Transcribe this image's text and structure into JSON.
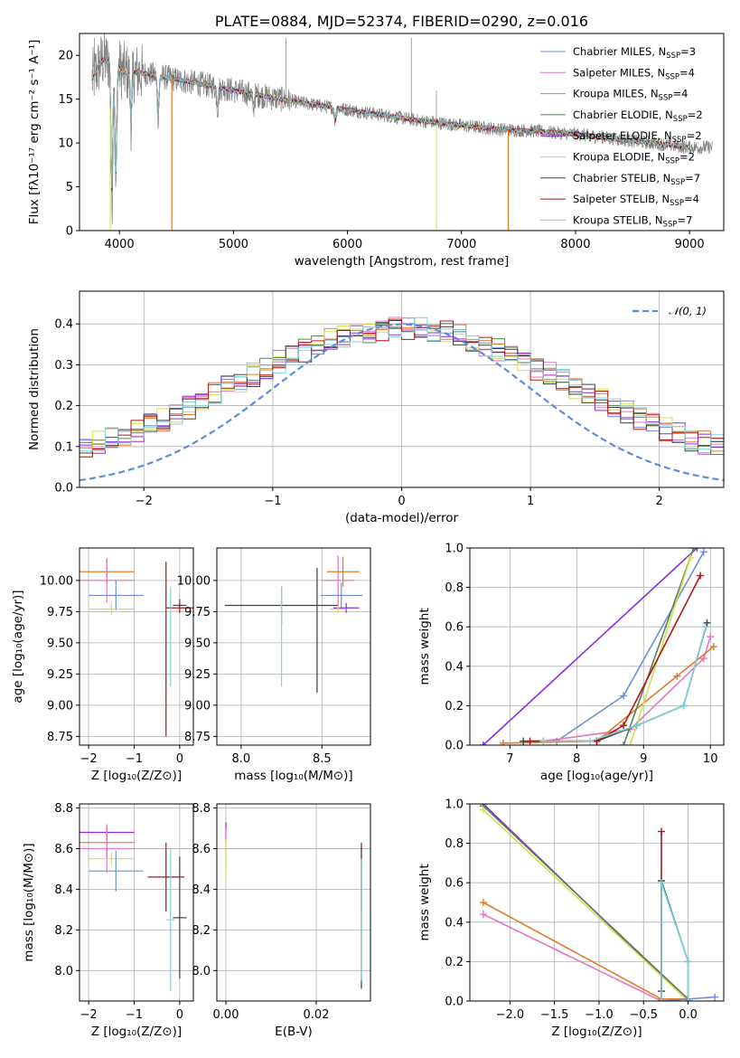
{
  "chart_data": [
    {
      "id": "spectrum",
      "type": "line",
      "title": "PLATE=0884, MJD=52374, FIBERID=0290, z=0.016",
      "xlabel": "wavelength [Angstrom, rest frame]",
      "ylabel": "Flux [fλ10⁻¹⁷ erg cm⁻² s⁻¹ A⁻¹]",
      "xlim": [
        3650,
        9300
      ],
      "ylim": [
        0,
        22.5
      ],
      "xticks": [
        "4000",
        "5000",
        "6000",
        "7000",
        "8000",
        "9000"
      ],
      "xtick_values": [
        4000,
        5000,
        6000,
        7000,
        8000,
        9000
      ],
      "yticks": [
        "0",
        "5",
        "10",
        "15",
        "20"
      ],
      "ytick_values": [
        0,
        5,
        10,
        15,
        20
      ],
      "grid": false,
      "legend_position": "top-right",
      "data_color": "#808080",
      "continuum": {
        "x": [
          3750,
          3850,
          3950,
          4050,
          4200,
          4400,
          4600,
          4800,
          5000,
          5200,
          5500,
          5800,
          6000,
          6300,
          6600,
          7000,
          7300,
          7600,
          8000,
          8400,
          8800,
          9000
        ],
        "y": [
          17,
          19.5,
          19,
          18,
          18,
          17.5,
          17,
          16.5,
          16,
          15.5,
          14.8,
          14.2,
          13.8,
          13.2,
          12.6,
          12,
          11.6,
          11.4,
          11,
          10.4,
          9.8,
          9.5
        ]
      },
      "absorption_dips": [
        {
          "x": 3934,
          "y": 3
        },
        {
          "x": 3968,
          "y": 5
        },
        {
          "x": 4102,
          "y": 12.5
        },
        {
          "x": 4340,
          "y": 13
        },
        {
          "x": 4861,
          "y": 14
        },
        {
          "x": 5175,
          "y": 14
        },
        {
          "x": 5892,
          "y": 12.5
        }
      ],
      "model_drops": [
        {
          "x": 4460,
          "y": 0
        },
        {
          "x": 7410,
          "y": 0
        }
      ],
      "legend": [
        {
          "name": "Chabrier MILES, N",
          "sub": "SSP",
          "suffix": "=3",
          "color": "#6b8fd9"
        },
        {
          "name": "Salpeter MILES, N",
          "sub": "SSP",
          "suffix": "=4",
          "color": "#e377c2"
        },
        {
          "name": "Kroupa MILES, N",
          "sub": "SSP",
          "suffix": "=4",
          "color": "#e07b2a"
        },
        {
          "name": "Chabrier ELODIE, N",
          "sub": "SSP",
          "suffix": "=2",
          "color": "#5a7f5a"
        },
        {
          "name": "Salpeter ELODIE, N",
          "sub": "SSP",
          "suffix": "=2",
          "color": "#8a2be2"
        },
        {
          "name": "Kroupa ELODIE, N",
          "sub": "SSP",
          "suffix": "=2",
          "color": "#d4e04a"
        },
        {
          "name": "Chabrier STELIB, N",
          "sub": "SSP",
          "suffix": "=7",
          "color": "#404040"
        },
        {
          "name": "Salpeter STELIB, N",
          "sub": "SSP",
          "suffix": "=4",
          "color": "#b01515"
        },
        {
          "name": "Kroupa STELIB, N",
          "sub": "SSP",
          "suffix": "=7",
          "color": "#7fd3d9"
        }
      ]
    },
    {
      "id": "residuals",
      "type": "line",
      "xlabel": "(data-model)/error",
      "ylabel": "Normed distribution",
      "xlim": [
        -2.5,
        2.5
      ],
      "ylim": [
        0,
        0.48
      ],
      "xticks": [
        "−2",
        "−1",
        "0",
        "1",
        "2"
      ],
      "xtick_values": [
        -2,
        -1,
        0,
        1,
        2
      ],
      "yticks": [
        "0.0",
        "0.1",
        "0.2",
        "0.3",
        "0.4"
      ],
      "ytick_values": [
        0,
        0.1,
        0.2,
        0.3,
        0.4
      ],
      "grid": true,
      "legend_position": "top-right",
      "gauss_label": "𝒩(0, 1)",
      "gauss_color": "#5b8ed9",
      "bin_start": -2.5,
      "bin_width": 0.1
    },
    {
      "id": "age-vs-z",
      "type": "scatter",
      "xlabel": "Z [log₁₀(Z/Z⊙)]",
      "ylabel": "age  [log₁₀(age/yr)]",
      "xlim": [
        -2.2,
        0.3
      ],
      "ylim": [
        8.68,
        10.26
      ],
      "xticks": [
        "−2",
        "−1",
        "0"
      ],
      "xtick_values": [
        -2,
        -1,
        0
      ],
      "yticks": [
        "8.75",
        "9.00",
        "9.25",
        "9.50",
        "9.75",
        "10.00"
      ],
      "ytick_values": [
        8.75,
        9.0,
        9.25,
        9.5,
        9.75,
        10.0
      ],
      "grid": true,
      "points": [
        {
          "x": -1.6,
          "y": 10.07,
          "xerr": 0.6,
          "yerr": 0.1,
          "color": "#e07b2a"
        },
        {
          "x": -1.6,
          "y": 10.0,
          "xerr": 0.6,
          "yerr": 0.18,
          "color": "#e377c2"
        },
        {
          "x": -1.4,
          "y": 9.88,
          "xerr": 0.6,
          "yerr": 0.12,
          "color": "#6b8fd9"
        },
        {
          "x": -1.5,
          "y": 9.77,
          "xerr": 0.5,
          "yerr": 0.05,
          "color": "#d4e04a"
        },
        {
          "x": -0.3,
          "y": 9.45,
          "xerr": 0.0,
          "yerr": 0.7,
          "color": "#b01515"
        },
        {
          "x": 0.0,
          "y": 9.8,
          "xerr": 0.15,
          "yerr": 0.05,
          "color": "#404040"
        },
        {
          "x": 0.0,
          "y": 9.78,
          "xerr": 0.3,
          "yerr": 0.04,
          "color": "#b01515"
        },
        {
          "x": -0.2,
          "y": 9.55,
          "xerr": 0.0,
          "yerr": 0.4,
          "color": "#7fd3d9"
        }
      ]
    },
    {
      "id": "age-vs-mass",
      "type": "scatter",
      "xlabel": "mass [log₁₀(M/M⊙)]",
      "ylabel": "",
      "xlim": [
        7.85,
        8.8
      ],
      "ylim": [
        8.68,
        10.26
      ],
      "xticks": [
        "8.0",
        "8.5"
      ],
      "xtick_values": [
        8.0,
        8.5
      ],
      "yticks": [
        "8.75",
        "9.00",
        "9.25",
        "9.50",
        "9.75",
        "10.00"
      ],
      "ytick_values": [
        8.75,
        9.0,
        9.25,
        9.5,
        9.75,
        10.0
      ],
      "grid": true,
      "points": [
        {
          "x": 8.25,
          "y": 9.8,
          "xerr": 0.35,
          "yerr": 0.15,
          "color": "#404040"
        },
        {
          "x": 8.25,
          "y": 9.55,
          "xerr": 0.0,
          "yerr": 0.4,
          "color": "#7fd3d9"
        },
        {
          "x": 8.47,
          "y": 9.6,
          "xerr": 0.0,
          "yerr": 0.5,
          "color": "#404040"
        },
        {
          "x": 8.6,
          "y": 10.0,
          "xerr": 0.1,
          "yerr": 0.2,
          "color": "#e377c2"
        },
        {
          "x": 8.63,
          "y": 10.07,
          "xerr": 0.1,
          "yerr": 0.12,
          "color": "#e07b2a"
        },
        {
          "x": 8.62,
          "y": 9.88,
          "xerr": 0.13,
          "yerr": 0.1,
          "color": "#6b8fd9"
        },
        {
          "x": 8.65,
          "y": 9.78,
          "xerr": 0.08,
          "yerr": 0.04,
          "color": "#8a2be2"
        },
        {
          "x": 8.6,
          "y": 9.77,
          "xerr": 0.05,
          "yerr": 0.03,
          "color": "#d4e04a"
        }
      ]
    },
    {
      "id": "weight-vs-age",
      "type": "line",
      "xlabel": "age  [log₁₀(age/yr)]",
      "ylabel": "mass weight",
      "xlim": [
        6.4,
        10.2
      ],
      "ylim": [
        0,
        1.0
      ],
      "xticks": [
        "7",
        "8",
        "9",
        "10"
      ],
      "xtick_values": [
        7,
        8,
        9,
        10
      ],
      "yticks": [
        "0.0",
        "0.2",
        "0.4",
        "0.6",
        "0.8",
        "1.0"
      ],
      "ytick_values": [
        0,
        0.2,
        0.4,
        0.6,
        0.8,
        1.0
      ],
      "grid": true,
      "series": [
        {
          "color": "#8a2be2",
          "x": [
            6.6,
            9.8
          ],
          "y": [
            0.0,
            1.0
          ]
        },
        {
          "color": "#6b8fd9",
          "x": [
            7.7,
            8.7,
            9.9
          ],
          "y": [
            0.02,
            0.25,
            0.98
          ]
        },
        {
          "color": "#e377c2",
          "x": [
            7.5,
            8.8,
            9.9,
            10.0
          ],
          "y": [
            0.02,
            0.08,
            0.44,
            0.55
          ]
        },
        {
          "color": "#e07b2a",
          "x": [
            6.9,
            8.3,
            9.5,
            10.05
          ],
          "y": [
            0.01,
            0.02,
            0.35,
            0.5
          ]
        },
        {
          "color": "#5a7f5a",
          "x": [
            8.7,
            9.75
          ],
          "y": [
            0.0,
            1.0
          ]
        },
        {
          "color": "#d4e04a",
          "x": [
            8.8,
            9.7
          ],
          "y": [
            0.0,
            0.95
          ]
        },
        {
          "color": "#404040",
          "x": [
            7.2,
            8.3,
            8.9,
            9.6,
            9.95
          ],
          "y": [
            0.02,
            0.02,
            0.1,
            0.2,
            0.62
          ]
        },
        {
          "color": "#b01515",
          "x": [
            7.3,
            8.3,
            8.7,
            9.85
          ],
          "y": [
            0.02,
            0.02,
            0.1,
            0.86
          ]
        },
        {
          "color": "#7fd3d9",
          "x": [
            7.5,
            8.2,
            8.9,
            9.6,
            9.93
          ],
          "y": [
            0.02,
            0.02,
            0.1,
            0.2,
            0.6
          ]
        }
      ]
    },
    {
      "id": "mass-vs-z",
      "type": "scatter",
      "xlabel": "Z [log₁₀(Z/Z⊙)]",
      "ylabel": "mass [log₁₀(M/M⊙)]",
      "xlim": [
        -2.2,
        0.3
      ],
      "ylim": [
        7.85,
        8.82
      ],
      "xticks": [
        "−2",
        "−1",
        "0"
      ],
      "xtick_values": [
        -2,
        -1,
        0
      ],
      "yticks": [
        "8.0",
        "8.2",
        "8.4",
        "8.6",
        "8.8"
      ],
      "ytick_values": [
        8.0,
        8.2,
        8.4,
        8.6,
        8.8
      ],
      "grid": true,
      "points": [
        {
          "x": -1.6,
          "y": 8.68,
          "xerr": 0.6,
          "yerr": 0.03,
          "color": "#8a2be2"
        },
        {
          "x": -1.6,
          "y": 8.63,
          "xerr": 0.6,
          "yerr": 0.08,
          "color": "#e07b2a"
        },
        {
          "x": -1.6,
          "y": 8.6,
          "xerr": 0.6,
          "yerr": 0.12,
          "color": "#e377c2"
        },
        {
          "x": -1.5,
          "y": 8.55,
          "xerr": 0.5,
          "yerr": 0.03,
          "color": "#d4e04a"
        },
        {
          "x": -1.4,
          "y": 8.49,
          "xerr": 0.6,
          "yerr": 0.1,
          "color": "#6b8fd9"
        },
        {
          "x": -0.3,
          "y": 8.46,
          "xerr": 0.4,
          "yerr": 0.17,
          "color": "#b01515"
        },
        {
          "x": 0.0,
          "y": 8.26,
          "xerr": 0.15,
          "yerr": 0.3,
          "color": "#404040"
        },
        {
          "x": -0.2,
          "y": 8.25,
          "xerr": 0.1,
          "yerr": 0.35,
          "color": "#7fd3d9"
        }
      ]
    },
    {
      "id": "mass-vs-ebv",
      "type": "scatter",
      "xlabel": "E(B-V)",
      "ylabel": "",
      "xlim": [
        -0.002,
        0.032
      ],
      "ylim": [
        7.85,
        8.82
      ],
      "xticks": [
        "0.00",
        "0.02"
      ],
      "xtick_values": [
        0.0,
        0.02
      ],
      "yticks": [
        "8.0",
        "8.2",
        "8.4",
        "8.6",
        "8.8"
      ],
      "ytick_values": [
        8.0,
        8.2,
        8.4,
        8.6,
        8.8
      ],
      "grid": true,
      "points": [
        {
          "x": 0.0,
          "y": 8.68,
          "xerr": 0,
          "yerr": 0.05,
          "color": "#8a2be2"
        },
        {
          "x": 0.0,
          "y": 8.6,
          "xerr": 0,
          "yerr": 0.1,
          "color": "#e377c2"
        },
        {
          "x": 0.0,
          "y": 8.55,
          "xerr": 0,
          "yerr": 0.1,
          "color": "#d4e04a"
        },
        {
          "x": 0.03,
          "y": 8.46,
          "xerr": 0,
          "yerr": 0.17,
          "color": "#b01515"
        },
        {
          "x": 0.03,
          "y": 8.26,
          "xerr": 0,
          "yerr": 0.35,
          "color": "#404040"
        },
        {
          "x": 0.03,
          "y": 8.25,
          "xerr": 0,
          "yerr": 0.3,
          "color": "#7fd3d9"
        }
      ]
    },
    {
      "id": "weight-vs-z",
      "type": "line",
      "xlabel": "Z [log₁₀(Z/Z⊙)]",
      "ylabel": "mass weight",
      "xlim": [
        -2.45,
        0.4
      ],
      "ylim": [
        0,
        1.0
      ],
      "xticks": [
        "−2.0",
        "−1.5",
        "−1.0",
        "−0.5",
        "0.0"
      ],
      "xtick_values": [
        -2.0,
        -1.5,
        -1.0,
        -0.5,
        0.0
      ],
      "yticks": [
        "0.0",
        "0.2",
        "0.4",
        "0.6",
        "0.8",
        "1.0"
      ],
      "ytick_values": [
        0,
        0.2,
        0.4,
        0.6,
        0.8,
        1.0
      ],
      "grid": true,
      "series": [
        {
          "color": "#8a2be2",
          "x": [
            -2.3,
            0.0
          ],
          "y": [
            1.0,
            0.0
          ]
        },
        {
          "color": "#5a7f5a",
          "x": [
            -2.3,
            0.0
          ],
          "y": [
            0.99,
            0.01
          ]
        },
        {
          "color": "#d4e04a",
          "x": [
            -2.3,
            0.0
          ],
          "y": [
            0.97,
            0.0
          ]
        },
        {
          "color": "#e07b2a",
          "x": [
            -2.3,
            -0.3,
            0.0
          ],
          "y": [
            0.5,
            0.01,
            0.01
          ]
        },
        {
          "color": "#e377c2",
          "x": [
            -2.3,
            -0.3
          ],
          "y": [
            0.44,
            0.0
          ]
        },
        {
          "color": "#6b8fd9",
          "x": [
            -0.3,
            0.3
          ],
          "y": [
            0.0,
            0.02
          ]
        },
        {
          "color": "#b01515",
          "x": [
            -0.3,
            -0.3
          ],
          "y": [
            0.0,
            0.86
          ]
        },
        {
          "color": "#404040",
          "x": [
            -0.3,
            -0.3,
            0.0,
            0.0
          ],
          "y": [
            0.05,
            0.61,
            0.2,
            0.0
          ]
        },
        {
          "color": "#7fd3d9",
          "x": [
            -0.3,
            -0.3,
            0.0,
            0.0
          ],
          "y": [
            0.0,
            0.6,
            0.2,
            0.0
          ]
        }
      ]
    }
  ]
}
